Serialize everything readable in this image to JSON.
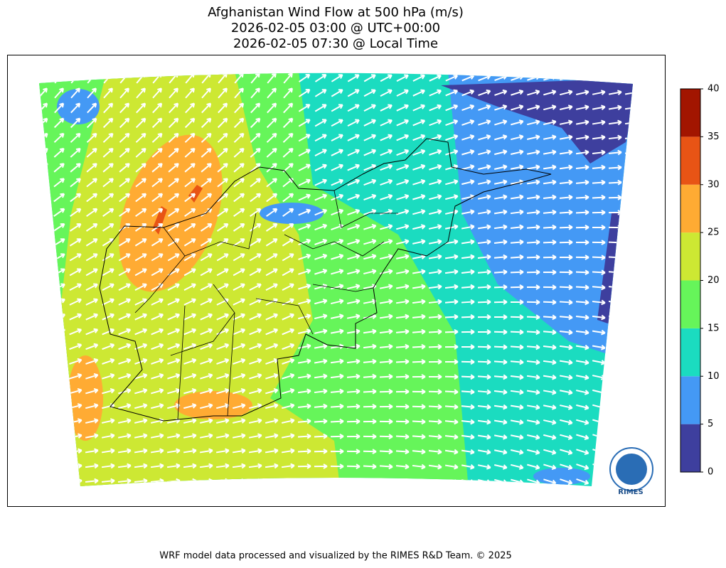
{
  "title": [
    "Afghanistan Wind Flow at 500 hPa (m/s)",
    "2026-02-05 03:00 @ UTC+00:00",
    "2026-02-05 07:30 @ Local Time"
  ],
  "colorbar": {
    "lim": [
      0,
      40
    ],
    "ticks": [
      0,
      5,
      10,
      15,
      20,
      25,
      30,
      35,
      40
    ],
    "colors": [
      "#3e3f9e",
      "#4499f5",
      "#1bdcc0",
      "#66f55a",
      "#cde833",
      "#ffab33",
      "#e85415",
      "#a21500"
    ]
  },
  "logo": "RIMES",
  "footer": "WRF model data processed and visualized by the RIMES R&D Team. © 2025"
}
